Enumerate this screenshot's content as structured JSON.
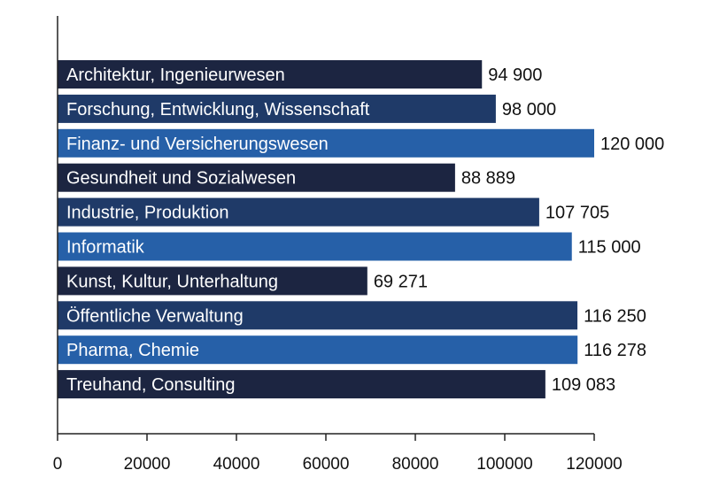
{
  "chart_data": {
    "type": "bar",
    "orientation": "horizontal",
    "categories": [
      "Architektur, Ingenieurwesen",
      "Forschung, Entwicklung, Wissenschaft",
      "Finanz- und Versicherungswesen",
      "Gesundheit und Sozialwesen",
      "Industrie, Produktion",
      "Informatik",
      "Kunst, Kultur, Unterhaltung",
      "Öffentliche Verwaltung",
      "Pharma, Chemie",
      "Treuhand, Consulting"
    ],
    "values": [
      94900,
      98000,
      120000,
      88889,
      107705,
      115000,
      69271,
      116250,
      116278,
      109083
    ],
    "value_labels": [
      "94 900",
      "98 000",
      "120 000",
      "88 889",
      "107 705",
      "115 000",
      "69 271",
      "116 250",
      "116 278",
      "109 083"
    ],
    "bar_colors": [
      "#1c2541",
      "#1f3a68",
      "#2660a8",
      "#1c2541",
      "#1f3a68",
      "#2660a8",
      "#1c2541",
      "#1f3a68",
      "#2660a8",
      "#1c2541"
    ],
    "xlim": [
      0,
      120000
    ],
    "xticks": [
      0,
      20000,
      40000,
      60000,
      80000,
      100000,
      120000
    ],
    "xtick_labels": [
      "0",
      "20000",
      "40000",
      "60000",
      "80000",
      "100000",
      "120000"
    ],
    "grid": false,
    "title": "",
    "xlabel": "",
    "ylabel": ""
  }
}
